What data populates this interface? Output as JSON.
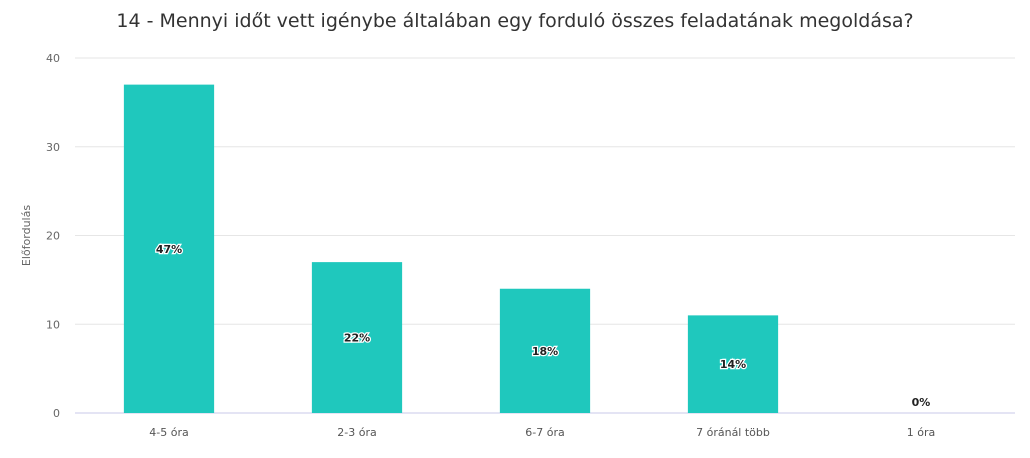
{
  "chart_data": {
    "type": "bar",
    "title": "14 - Mennyi időt vett igénybe általában egy forduló összes feladatának megoldása?",
    "xlabel": "",
    "ylabel": "Előfordulás",
    "categories": [
      "4-5 óra",
      "2-3 óra",
      "6-7 óra",
      "7 óránál több",
      "1 óra"
    ],
    "values": [
      37,
      17,
      14,
      11,
      0
    ],
    "data_labels": [
      "47%",
      "22%",
      "18%",
      "14%",
      "0%"
    ],
    "ylim": [
      0,
      40
    ],
    "yticks": [
      "0",
      "10",
      "20",
      "30",
      "40"
    ],
    "grid": true,
    "legend": "none",
    "bar_color": "#1fc8bd",
    "grid_color": "#e6e6e6",
    "baseline_color": "#c8c8e8"
  }
}
